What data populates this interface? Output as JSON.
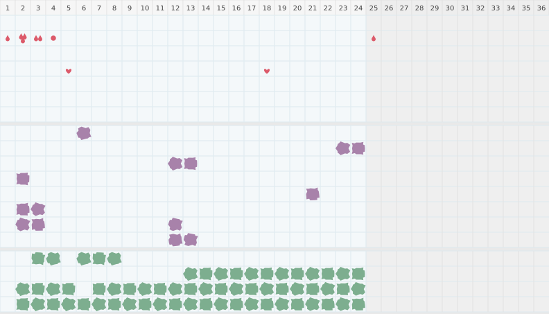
{
  "header": {
    "days": [
      1,
      2,
      3,
      4,
      5,
      6,
      7,
      8,
      9,
      10,
      11,
      12,
      13,
      14,
      15,
      16,
      17,
      18,
      19,
      20,
      21,
      22,
      23,
      24,
      25,
      26,
      27,
      28,
      29,
      30,
      31,
      32,
      33,
      34,
      35,
      36
    ],
    "shaded_from": 25
  },
  "sections": [
    {
      "color": "#dc5a6a",
      "rows": [
        [],
        [
          {
            "day": 1,
            "icon": "drop",
            "count": 1
          },
          {
            "day": 2,
            "icon": "drop",
            "count": 3
          },
          {
            "day": 3,
            "icon": "drop",
            "count": 2
          },
          {
            "day": 4,
            "icon": "circle",
            "count": 1
          },
          {
            "day": 25,
            "icon": "drop",
            "count": 1
          }
        ],
        [],
        [
          {
            "day": 5,
            "icon": "heart",
            "count": 1
          },
          {
            "day": 18,
            "icon": "heart",
            "count": 1
          }
        ],
        [],
        [],
        []
      ]
    },
    {
      "color": "#a47ca6",
      "rows": [
        [
          {
            "day": 6,
            "icon": "blob",
            "count": 1
          }
        ],
        [
          {
            "day": 23,
            "icon": "blob",
            "count": 1
          },
          {
            "day": 24,
            "icon": "blob",
            "count": 1
          }
        ],
        [
          {
            "day": 12,
            "icon": "blob",
            "count": 1
          },
          {
            "day": 13,
            "icon": "blob",
            "count": 1
          }
        ],
        [
          {
            "day": 2,
            "icon": "blob",
            "count": 1
          }
        ],
        [
          {
            "day": 21,
            "icon": "blob",
            "count": 1
          }
        ],
        [
          {
            "day": 2,
            "icon": "blob",
            "count": 1
          },
          {
            "day": 3,
            "icon": "blob",
            "count": 1
          }
        ],
        [
          {
            "day": 2,
            "icon": "blob",
            "count": 1
          },
          {
            "day": 3,
            "icon": "blob",
            "count": 1
          },
          {
            "day": 12,
            "icon": "blob",
            "count": 1
          }
        ],
        [
          {
            "day": 12,
            "icon": "blob",
            "count": 1
          },
          {
            "day": 13,
            "icon": "blob",
            "count": 1
          }
        ]
      ]
    },
    {
      "color": "#77ab8a",
      "rows": [
        [
          {
            "day": 3,
            "icon": "blob",
            "count": 1
          },
          {
            "day": 4,
            "icon": "blob",
            "count": 1
          },
          {
            "day": 6,
            "icon": "blob",
            "count": 1
          },
          {
            "day": 7,
            "icon": "blob",
            "count": 1
          },
          {
            "day": 8,
            "icon": "blob",
            "count": 1
          }
        ],
        [
          {
            "day": 13,
            "icon": "blob",
            "count": 1
          },
          {
            "day": 14,
            "icon": "blob",
            "count": 1
          },
          {
            "day": 15,
            "icon": "blob",
            "count": 1
          },
          {
            "day": 16,
            "icon": "blob",
            "count": 1
          },
          {
            "day": 17,
            "icon": "blob",
            "count": 1
          },
          {
            "day": 18,
            "icon": "blob",
            "count": 1
          },
          {
            "day": 19,
            "icon": "blob",
            "count": 1
          },
          {
            "day": 20,
            "icon": "blob",
            "count": 1
          },
          {
            "day": 21,
            "icon": "blob",
            "count": 1
          },
          {
            "day": 22,
            "icon": "blob",
            "count": 1
          },
          {
            "day": 23,
            "icon": "blob",
            "count": 1
          },
          {
            "day": 24,
            "icon": "blob",
            "count": 1
          }
        ],
        [
          {
            "day": 2,
            "icon": "blob",
            "count": 1
          },
          {
            "day": 3,
            "icon": "blob",
            "count": 1
          },
          {
            "day": 4,
            "icon": "blob",
            "count": 1
          },
          {
            "day": 5,
            "icon": "blob",
            "count": 1
          },
          {
            "day": 7,
            "icon": "blob",
            "count": 1
          },
          {
            "day": 8,
            "icon": "blob",
            "count": 1
          },
          {
            "day": 9,
            "icon": "blob",
            "count": 1
          },
          {
            "day": 10,
            "icon": "blob",
            "count": 1
          },
          {
            "day": 11,
            "icon": "blob",
            "count": 1
          },
          {
            "day": 12,
            "icon": "blob",
            "count": 1
          },
          {
            "day": 13,
            "icon": "blob",
            "count": 1
          },
          {
            "day": 14,
            "icon": "blob",
            "count": 1
          },
          {
            "day": 15,
            "icon": "blob",
            "count": 1
          },
          {
            "day": 16,
            "icon": "blob",
            "count": 1
          },
          {
            "day": 17,
            "icon": "blob",
            "count": 1
          },
          {
            "day": 18,
            "icon": "blob",
            "count": 1
          },
          {
            "day": 19,
            "icon": "blob",
            "count": 1
          },
          {
            "day": 20,
            "icon": "blob",
            "count": 1
          },
          {
            "day": 21,
            "icon": "blob",
            "count": 1
          },
          {
            "day": 22,
            "icon": "blob",
            "count": 1
          },
          {
            "day": 23,
            "icon": "blob",
            "count": 1
          },
          {
            "day": 24,
            "icon": "blob",
            "count": 1
          }
        ],
        [
          {
            "day": 2,
            "icon": "blob",
            "count": 1
          },
          {
            "day": 3,
            "icon": "blob",
            "count": 1
          },
          {
            "day": 4,
            "icon": "blob",
            "count": 1
          },
          {
            "day": 5,
            "icon": "blob",
            "count": 1
          },
          {
            "day": 6,
            "icon": "blob",
            "count": 1
          },
          {
            "day": 7,
            "icon": "blob",
            "count": 1
          },
          {
            "day": 8,
            "icon": "blob",
            "count": 1
          },
          {
            "day": 9,
            "icon": "blob",
            "count": 1
          },
          {
            "day": 10,
            "icon": "blob",
            "count": 1
          },
          {
            "day": 11,
            "icon": "blob",
            "count": 1
          },
          {
            "day": 12,
            "icon": "blob",
            "count": 1
          },
          {
            "day": 13,
            "icon": "blob",
            "count": 1
          },
          {
            "day": 14,
            "icon": "blob",
            "count": 1
          },
          {
            "day": 15,
            "icon": "blob",
            "count": 1
          },
          {
            "day": 16,
            "icon": "blob",
            "count": 1
          },
          {
            "day": 17,
            "icon": "blob",
            "count": 1
          },
          {
            "day": 18,
            "icon": "blob",
            "count": 1
          },
          {
            "day": 19,
            "icon": "blob",
            "count": 1
          },
          {
            "day": 20,
            "icon": "blob",
            "count": 1
          },
          {
            "day": 21,
            "icon": "blob",
            "count": 1
          },
          {
            "day": 22,
            "icon": "blob",
            "count": 1
          },
          {
            "day": 23,
            "icon": "blob",
            "count": 1
          },
          {
            "day": 24,
            "icon": "blob",
            "count": 1
          }
        ]
      ]
    }
  ]
}
